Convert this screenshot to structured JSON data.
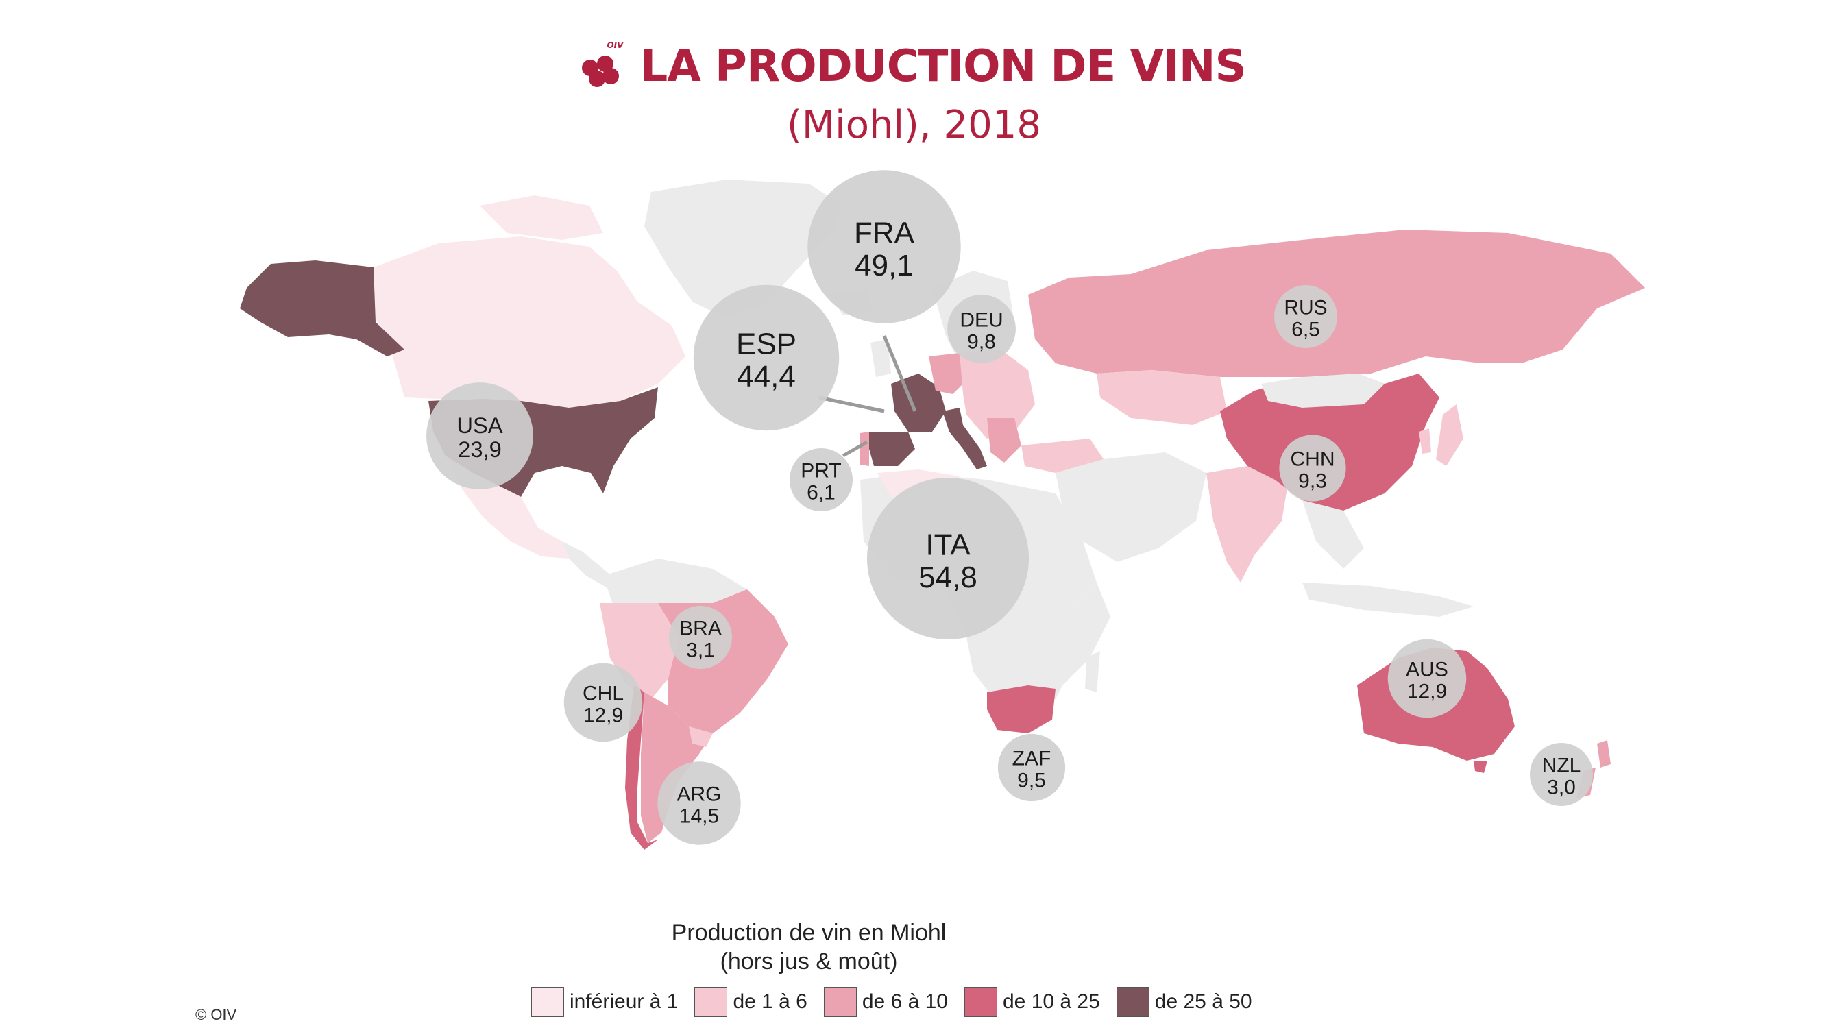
{
  "header": {
    "logo_text": "OIV",
    "title": "LA PRODUCTION DE VINS",
    "subtitle": "(Miohl), 2018"
  },
  "colors": {
    "title": "#b0203f",
    "ocean": "#ffffff",
    "no_data_land": "#ebebeb",
    "bubble": "#cfcfcf",
    "class_lt1": "#fbe8ec",
    "class_1_6": "#f6c9d2",
    "class_6_10": "#eba3b1",
    "class_10_25": "#d4647c",
    "class_25_50": "#7b545b"
  },
  "legend": {
    "title_line1": "Production de vin en Miohl",
    "title_line2": "(hors jus & moût)",
    "items": [
      {
        "label": "inférieur à 1",
        "color": "#fbe8ec"
      },
      {
        "label": "de 1 à 6",
        "color": "#f6c9d2"
      },
      {
        "label": "de 6 à 10",
        "color": "#eba3b1"
      },
      {
        "label": "de 10 à 25",
        "color": "#d4647c"
      },
      {
        "label": "de 25 à 50",
        "color": "#7b545b"
      }
    ]
  },
  "copyright": "© OIV",
  "map_data": {
    "unit": "Miohl",
    "year": "2018",
    "countries": [
      {
        "code": "ITA",
        "value": "54,8",
        "num": 54.8
      },
      {
        "code": "FRA",
        "value": "49,1",
        "num": 49.1
      },
      {
        "code": "ESP",
        "value": "44,4",
        "num": 44.4
      },
      {
        "code": "USA",
        "value": "23,9",
        "num": 23.9
      },
      {
        "code": "ARG",
        "value": "14,5",
        "num": 14.5
      },
      {
        "code": "CHL",
        "value": "12,9",
        "num": 12.9
      },
      {
        "code": "AUS",
        "value": "12,9",
        "num": 12.9
      },
      {
        "code": "DEU",
        "value": "9,8",
        "num": 9.8
      },
      {
        "code": "ZAF",
        "value": "9,5",
        "num": 9.5
      },
      {
        "code": "CHN",
        "value": "9,3",
        "num": 9.3
      },
      {
        "code": "RUS",
        "value": "6,5",
        "num": 6.5
      },
      {
        "code": "PRT",
        "value": "6,1",
        "num": 6.1
      },
      {
        "code": "BRA",
        "value": "3,1",
        "num": 3.1
      },
      {
        "code": "NZL",
        "value": "3,0",
        "num": 3.0
      }
    ]
  }
}
